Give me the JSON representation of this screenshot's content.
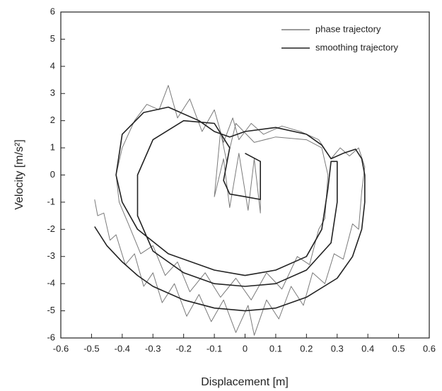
{
  "chart_data": {
    "type": "line",
    "xlabel": "Displacement [m]",
    "ylabel": "Velocity [m/s²]",
    "xlim": [
      -0.6,
      0.6
    ],
    "ylim": [
      -6,
      6
    ],
    "xticks": [
      -0.6,
      -0.5,
      -0.4,
      -0.3,
      -0.2,
      -0.1,
      0,
      0.1,
      0.2,
      0.3,
      0.4,
      0.5,
      0.6
    ],
    "yticks": [
      -6,
      -5,
      -4,
      -3,
      -2,
      -1,
      0,
      1,
      2,
      3,
      4,
      5,
      6
    ],
    "legend": "upper right",
    "series": [
      {
        "name": "phase trajectory",
        "color": "#7a7a7a",
        "x": [
          -0.49,
          -0.48,
          -0.46,
          -0.44,
          -0.42,
          -0.39,
          -0.36,
          -0.33,
          -0.3,
          -0.27,
          -0.23,
          -0.19,
          -0.15,
          -0.11,
          -0.07,
          -0.03,
          0.01,
          0.03,
          0.07,
          0.11,
          0.15,
          0.19,
          0.22,
          0.26,
          0.29,
          0.32,
          0.35,
          0.37,
          0.38,
          0.39,
          0.37,
          0.34,
          0.31,
          0.28,
          0.24,
          0.18,
          0.12,
          0.06,
          0.02,
          -0.02,
          -0.04,
          -0.07,
          -0.1,
          -0.14,
          -0.18,
          -0.22,
          -0.25,
          -0.28,
          -0.32,
          -0.36,
          -0.4,
          -0.42,
          -0.41,
          -0.38,
          -0.34,
          -0.3,
          -0.26,
          -0.22,
          -0.18,
          -0.13,
          -0.08,
          -0.03,
          0.02,
          0.07,
          0.12,
          0.17,
          0.21,
          0.24,
          0.26,
          0.27,
          0.25,
          0.2,
          0.1,
          0.03,
          -0.03,
          -0.06,
          -0.08,
          -0.1,
          -0.07,
          -0.05,
          -0.02,
          0.01,
          0.03,
          0.05,
          0.05
        ],
        "values": [
          -0.9,
          -1.5,
          -1.4,
          -2.4,
          -2.2,
          -3.3,
          -2.9,
          -4.1,
          -3.6,
          -4.7,
          -4.0,
          -5.2,
          -4.4,
          -5.4,
          -4.6,
          -5.8,
          -4.8,
          -5.9,
          -4.6,
          -5.3,
          -4.1,
          -4.8,
          -3.6,
          -4.0,
          -2.9,
          -3.1,
          -1.8,
          -2.0,
          -0.6,
          0.3,
          1.0,
          0.7,
          1.0,
          0.6,
          1.3,
          1.6,
          1.8,
          1.5,
          1.9,
          1.3,
          2.1,
          1.2,
          2.4,
          1.6,
          2.8,
          2.1,
          3.3,
          2.4,
          2.6,
          2.0,
          1.0,
          0,
          -1,
          -1.8,
          -2.9,
          -2.6,
          -3.7,
          -3.2,
          -4.3,
          -3.6,
          -4.5,
          -3.8,
          -4.6,
          -3.6,
          -4.2,
          -3.0,
          -3.3,
          -2.0,
          -1.6,
          0,
          1.0,
          1.3,
          1.4,
          1.2,
          1.9,
          0.5,
          1.6,
          -0.8,
          0.6,
          -1.2,
          0.8,
          -1.3,
          0.6,
          -1.4,
          0.5
        ]
      },
      {
        "name": "smoothing trajectory",
        "color": "#222222",
        "x": [
          -0.49,
          -0.45,
          -0.4,
          -0.35,
          -0.3,
          -0.2,
          -0.1,
          0,
          0.1,
          0.2,
          0.3,
          0.35,
          0.38,
          0.39,
          0.39,
          0.38,
          0.36,
          0.32,
          0.28,
          0.25,
          0.2,
          0.1,
          0,
          -0.05,
          -0.1,
          -0.15,
          -0.25,
          -0.33,
          -0.4,
          -0.42,
          -0.4,
          -0.35,
          -0.25,
          -0.1,
          0,
          0.1,
          0.2,
          0.25,
          0.27,
          0.28,
          0.3,
          0.3,
          0.28,
          0.2,
          0.1,
          0,
          -0.1,
          -0.2,
          -0.3,
          -0.35,
          -0.35,
          -0.3,
          -0.2,
          -0.1,
          -0.05,
          -0.07,
          -0.05,
          0,
          0.05,
          0.05,
          0
        ],
        "values": [
          -1.9,
          -2.6,
          -3.2,
          -3.7,
          -4.1,
          -4.6,
          -4.9,
          -5.0,
          -4.9,
          -4.5,
          -3.8,
          -3.0,
          -2.0,
          -1.0,
          0,
          0.6,
          0.95,
          0.8,
          0.6,
          1.1,
          1.5,
          1.75,
          1.6,
          1.4,
          1.6,
          2.0,
          2.5,
          2.3,
          1.5,
          0,
          -1,
          -2,
          -2.9,
          -3.5,
          -3.7,
          -3.5,
          -3.0,
          -2.0,
          -0.5,
          0.5,
          0.5,
          -1,
          -2.5,
          -3.5,
          -4.0,
          -4.1,
          -4.0,
          -3.6,
          -2.8,
          -1.5,
          0,
          1.3,
          2.0,
          1.9,
          1.0,
          -0.2,
          -0.7,
          -0.8,
          -0.9,
          0.5,
          0.8
        ]
      }
    ]
  }
}
